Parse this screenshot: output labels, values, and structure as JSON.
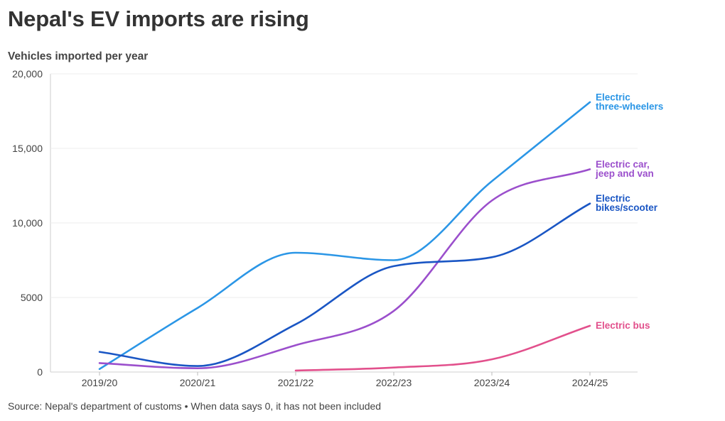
{
  "title": "Nepal's EV imports are rising",
  "source": "Source: Nepal's department of customs • When data says 0, it has not been included",
  "chart_data": {
    "type": "line",
    "title": "Nepal's EV imports are rising",
    "ylabel": "Vehicles imported per year",
    "xlabel": "",
    "categories": [
      "2019/20",
      "2020/21",
      "2021/22",
      "2022/23",
      "2023/24",
      "2024/25"
    ],
    "ylim": [
      0,
      20000
    ],
    "yticks": [
      0,
      5000,
      10000,
      15000,
      20000
    ],
    "ytick_labels": [
      "0",
      "5000",
      "10,000",
      "15,000",
      "20,000"
    ],
    "grid": true,
    "legend": "direct labels at line ends (right)",
    "series": [
      {
        "name": "Electric three-wheelers",
        "label_lines": [
          "Electric",
          "three-wheelers"
        ],
        "color": "#2b96e6",
        "values": [
          200,
          4300,
          8000,
          7500,
          12800,
          18100
        ]
      },
      {
        "name": "Electric car, jeep and van",
        "label_lines": [
          "Electric car,",
          "jeep and van"
        ],
        "color": "#9b4fcc",
        "values": [
          600,
          250,
          1800,
          4100,
          11500,
          13600
        ]
      },
      {
        "name": "Electric bikes/scooter",
        "label_lines": [
          "Electric",
          "bikes/scooter"
        ],
        "color": "#1a56c4",
        "values": [
          1350,
          400,
          3200,
          7100,
          7700,
          11300
        ]
      },
      {
        "name": "Electric bus",
        "label_lines": [
          "Electric bus"
        ],
        "color": "#e2508c",
        "values": [
          null,
          null,
          100,
          300,
          850,
          3100
        ]
      }
    ]
  }
}
